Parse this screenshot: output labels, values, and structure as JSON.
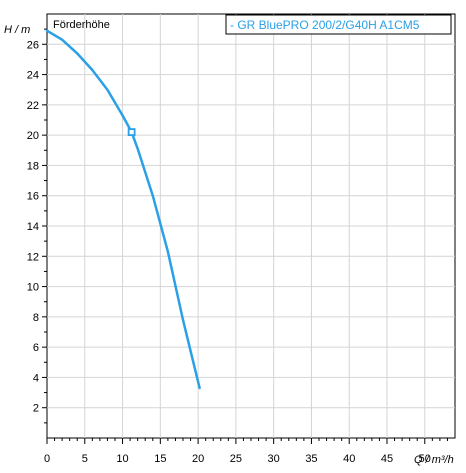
{
  "chart_data": {
    "type": "line",
    "title": "Förderhöhe",
    "ylabel": "H / m",
    "xlabel": "Q / m³/h",
    "xlim": [
      0,
      54
    ],
    "ylim": [
      0,
      28
    ],
    "x_ticks": [
      0,
      5,
      10,
      15,
      20,
      25,
      30,
      35,
      40,
      45,
      50
    ],
    "y_ticks": [
      2,
      4,
      6,
      8,
      10,
      12,
      14,
      16,
      18,
      20,
      22,
      24,
      26
    ],
    "grid": true,
    "legend_position": "top-right",
    "series": [
      {
        "name": "GR BluePRO 200/2/G40H A1CM5",
        "color": "#2aa0e6",
        "x": [
          0,
          2,
          4,
          6,
          8,
          10,
          11.2,
          12,
          14,
          16,
          18,
          20.2
        ],
        "y": [
          26.9,
          26.3,
          25.4,
          24.3,
          23.0,
          21.3,
          20.2,
          19.1,
          16.0,
          12.3,
          7.8,
          3.3
        ]
      }
    ],
    "markers": [
      {
        "x": 11.2,
        "y": 20.2,
        "shape": "square"
      }
    ]
  }
}
